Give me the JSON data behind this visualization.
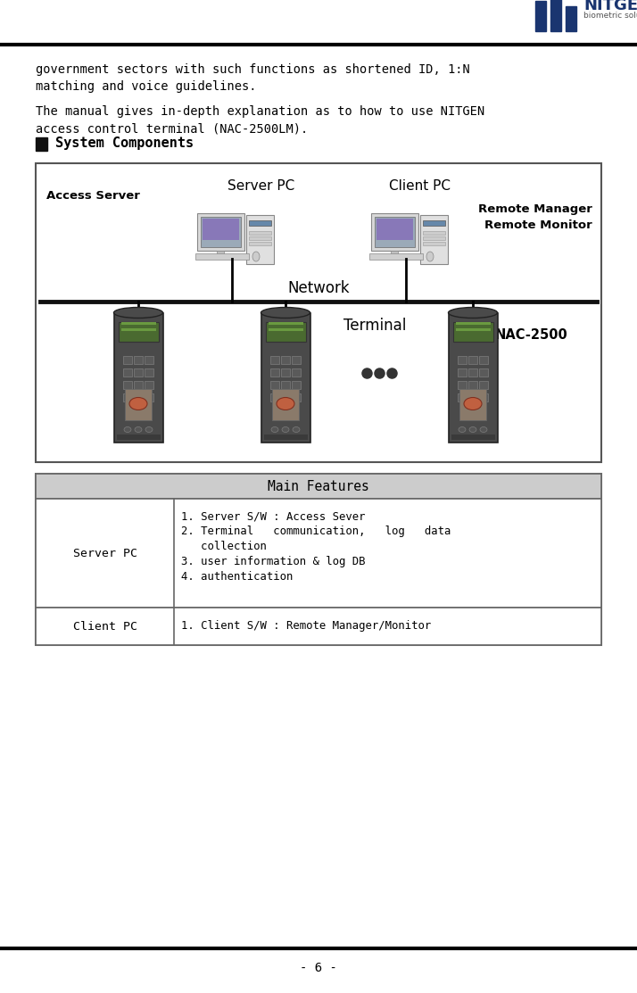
{
  "page_bg": "#ffffff",
  "line_color": "#000000",
  "logo_color": "#1a3570",
  "logo_sub_color": "#555555",
  "text_color": "#000000",
  "font_mono": "monospace",
  "font_sans": "sans-serif",
  "text1_line1": "government sectors with such functions as shortened ID, 1:N",
  "text1_line2": "matching and voice guidelines.",
  "text2_line1": "The manual gives in-depth explanation as to how to use NITGEN",
  "text2_line2": "access control terminal (NAC-2500LM).",
  "section_title": "System Components",
  "diagram_border": "#555555",
  "network_line_color": "#111111",
  "label_access_server": "Access Server",
  "label_server_pc": "Server PC",
  "label_client_pc": "Client PC",
  "label_remote_manager": "Remote Manager",
  "label_remote_monitor": "Remote Monitor",
  "label_network": "Network",
  "label_terminal": "Terminal",
  "label_nac2500": "NAC-2500",
  "table_hdr_bg": "#cccccc",
  "table_border": "#666666",
  "table_header": "Main Features",
  "row1_label": "Server PC",
  "row1_lines": [
    "1. Server S/W : Access Sever",
    "2. Terminal   communication,   log   data",
    "   collection",
    "3. user information & log DB",
    "4. authentication"
  ],
  "row2_label": "Client PC",
  "row2_line": "1. Client S/W : Remote Manager/Monitor",
  "footer": "- 6 -"
}
